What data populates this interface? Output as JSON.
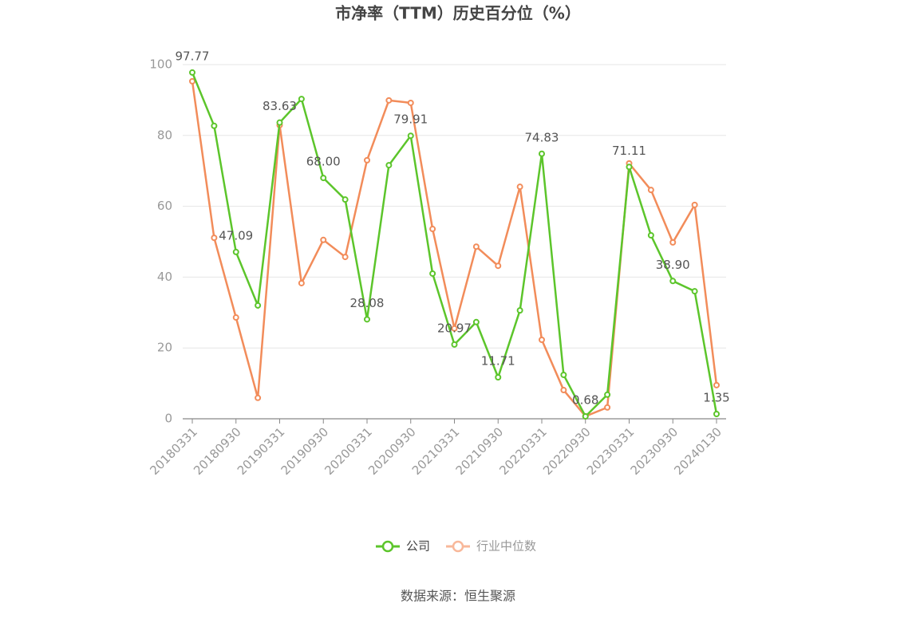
{
  "chart_data": {
    "type": "line",
    "title": "市净率（TTM）历史百分位（%）",
    "categories": [
      "20180331",
      null,
      "20180930",
      null,
      "20190331",
      null,
      "20190930",
      null,
      "20200331",
      null,
      "20200930",
      null,
      "20210331",
      null,
      "20210930",
      null,
      "20220331",
      null,
      "20220930",
      null,
      "20230331",
      null,
      "20230930",
      null,
      "20240130"
    ],
    "series": [
      {
        "name": "公司",
        "color": "#5cc52b",
        "values": [
          97.77,
          82.7,
          47.09,
          32.0,
          83.63,
          90.3,
          68.0,
          61.9,
          28.08,
          71.6,
          79.91,
          41.0,
          20.97,
          27.3,
          11.71,
          30.6,
          74.83,
          12.4,
          0.68,
          6.8,
          71.11,
          51.8,
          38.9,
          36.0,
          1.35
        ],
        "value_labels": [
          "97.77",
          null,
          "47.09",
          null,
          "83.63",
          null,
          "68.00",
          null,
          "28.08",
          null,
          "79.91",
          null,
          "20.97",
          null,
          "11.71",
          null,
          "74.83",
          null,
          "0.68",
          null,
          "71.11",
          null,
          "38.90",
          null,
          "1.35"
        ]
      },
      {
        "name": "行业中位数",
        "color": "#f28c5a",
        "values": [
          95.3,
          51.1,
          28.6,
          5.9,
          82.9,
          38.3,
          50.5,
          45.7,
          73.0,
          89.9,
          89.2,
          53.6,
          25.5,
          48.6,
          43.2,
          65.5,
          22.3,
          8.1,
          0.7,
          3.2,
          72.1,
          64.6,
          49.8,
          60.4,
          9.5
        ]
      }
    ],
    "ylim": [
      0,
      100
    ],
    "yticks": [
      0,
      20,
      40,
      60,
      80,
      100
    ],
    "grid": true,
    "legend": "bottom",
    "source": "数据来源：恒生聚源"
  }
}
